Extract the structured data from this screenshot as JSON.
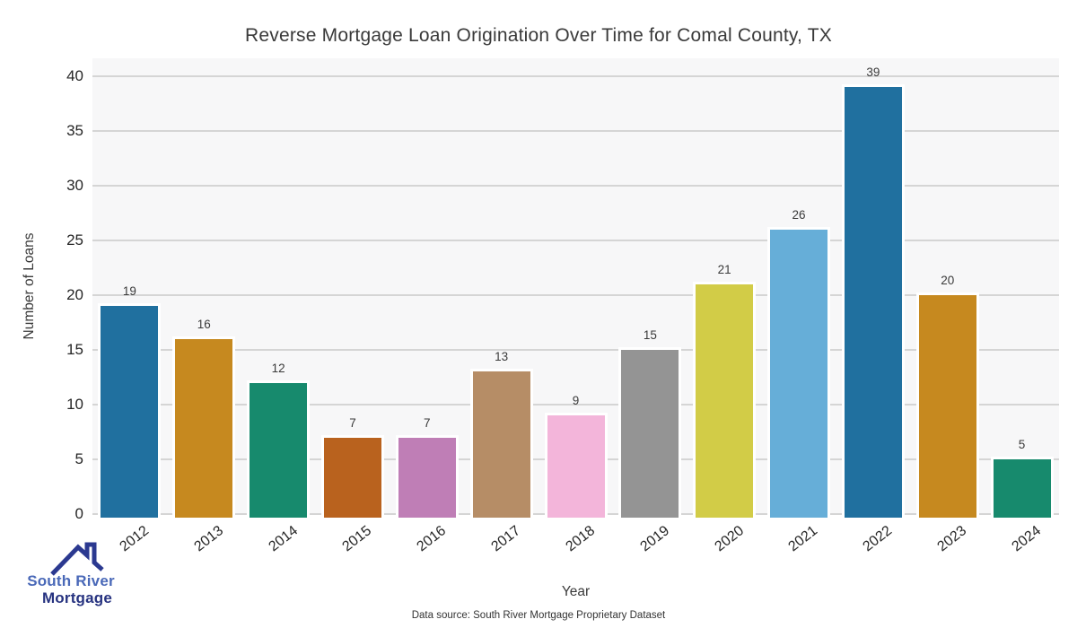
{
  "title": "Reverse Mortgage Loan Origination Over Time for Comal County, TX",
  "chart_data": {
    "type": "bar",
    "categories": [
      "2012",
      "2013",
      "2014",
      "2015",
      "2016",
      "2017",
      "2018",
      "2019",
      "2020",
      "2021",
      "2022",
      "2023",
      "2024"
    ],
    "values": [
      19,
      16,
      12,
      7,
      7,
      13,
      9,
      15,
      21,
      26,
      39,
      20,
      5
    ],
    "title": "Reverse Mortgage Loan Origination Over Time for Comal County, TX",
    "xlabel": "Year",
    "ylabel": "Number of Loans",
    "ylim": [
      0,
      40
    ],
    "yticks": [
      0,
      5,
      10,
      15,
      20,
      25,
      30,
      35,
      40
    ],
    "grid": "horizontal",
    "legend": "none",
    "value_labels_shown": true,
    "bar_colors": [
      "#20709f",
      "#c6891f",
      "#178a6d",
      "#b9621e",
      "#bf7eb6",
      "#b68d66",
      "#f3b5da",
      "#949494",
      "#d2cc47",
      "#66aed8",
      "#20709f",
      "#c6891f",
      "#178a6d"
    ]
  },
  "footer": {
    "data_source": "Data source: South River Mortgage Proprietary Dataset"
  },
  "logo": {
    "line1": "South River",
    "line2": "Mortgage",
    "line1_color": "#4a69b8",
    "line2_color": "#273380",
    "icon": "house-roof-icon",
    "icon_color": "#2b3990"
  },
  "style_colors": {
    "plot_background": "#f7f7f8",
    "gridline": "#d5d5d5",
    "title_text": "#3a3a3a",
    "tick_text": "#262626",
    "bar_edge": "#ffffff"
  }
}
